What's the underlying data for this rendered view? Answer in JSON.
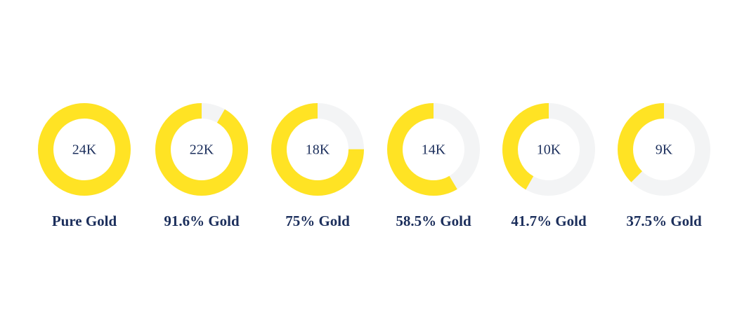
{
  "chart_data": {
    "type": "donut",
    "categories": [
      "24K",
      "22K",
      "18K",
      "14K",
      "10K",
      "9K"
    ],
    "values": [
      100,
      91.6,
      75,
      58.5,
      41.7,
      37.5
    ],
    "value_labels": [
      "Pure Gold",
      "91.6% Gold",
      "75% Gold",
      "58.5% Gold",
      "41.7% Gold",
      "37.5% Gold"
    ],
    "color": "#ffe324",
    "track_color": "#f3f4f5"
  }
}
